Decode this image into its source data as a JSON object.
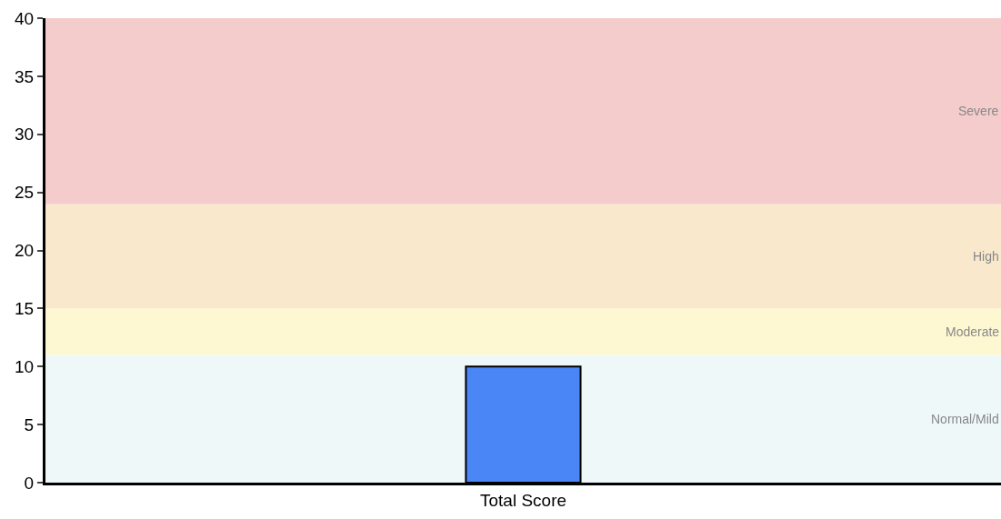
{
  "chart_data": {
    "type": "bar",
    "categories": [
      "Total Score"
    ],
    "values": [
      10
    ],
    "color": "#4a86f5",
    "ylim": [
      0,
      40
    ],
    "yticks": [
      0,
      5,
      10,
      15,
      20,
      25,
      30,
      35,
      40
    ],
    "grid": false,
    "bands": [
      {
        "axis": "y",
        "from": 0,
        "to": 11,
        "label": "Normal/Mild",
        "color": "#eff8f9"
      },
      {
        "axis": "y",
        "from": 11,
        "to": 15,
        "label": "Moderate",
        "color": "#fef8d2"
      },
      {
        "axis": "y",
        "from": 15,
        "to": 24,
        "label": "High",
        "color": "#f9e8cc"
      },
      {
        "axis": "y",
        "from": 24,
        "to": 40,
        "label": "Severe",
        "color": "#f4cccc"
      }
    ]
  }
}
